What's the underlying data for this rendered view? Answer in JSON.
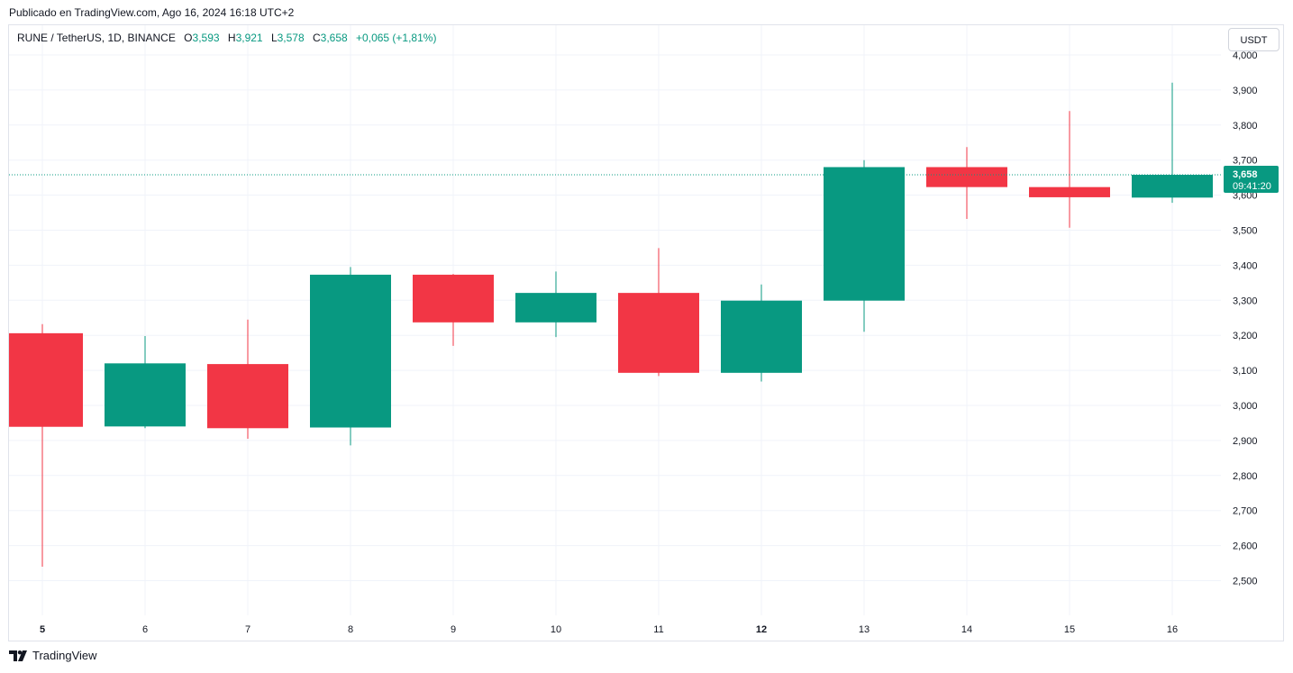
{
  "published_text": "Publicado en TradingView.com, Ago 16, 2024 16:18 UTC+2",
  "legend": {
    "symbol": "RUNE / TetherUS, 1D, BINANCE",
    "o_label": "O",
    "o_value": "3,593",
    "h_label": "H",
    "h_value": "3,921",
    "l_label": "L",
    "l_value": "3,578",
    "c_label": "C",
    "c_value": "3,658",
    "change": "+0,065 (+1,81%)"
  },
  "currency_button": "USDT",
  "price_tag": {
    "price": "3,658",
    "countdown": "09:41:20"
  },
  "brand": "TradingView",
  "colors": {
    "up": "#089981",
    "down": "#F23645",
    "grid": "#f0f3fa",
    "text": "#131722"
  },
  "chart_data": {
    "type": "candlestick",
    "x_ticks": [
      "5",
      "6",
      "7",
      "8",
      "9",
      "10",
      "11",
      "12",
      "13",
      "14",
      "15",
      "16"
    ],
    "bold_ticks": [
      "5",
      "12"
    ],
    "y_ticks": [
      "2,500",
      "2,600",
      "2,700",
      "2,800",
      "2,900",
      "3,000",
      "3,100",
      "3,200",
      "3,300",
      "3,400",
      "3,500",
      "3,600",
      "3,700",
      "3,800",
      "3,900",
      "4,000"
    ],
    "y_range": [
      2.4,
      4.02
    ],
    "last_price": 3.658,
    "candles": [
      {
        "x": "5",
        "open": 3.206,
        "high": 3.232,
        "low": 2.54,
        "close": 2.939
      },
      {
        "x": "6",
        "open": 2.94,
        "high": 3.198,
        "low": 2.935,
        "close": 3.12
      },
      {
        "x": "7",
        "open": 3.118,
        "high": 3.245,
        "low": 2.905,
        "close": 2.935
      },
      {
        "x": "8",
        "open": 2.937,
        "high": 3.395,
        "low": 2.886,
        "close": 3.373
      },
      {
        "x": "9",
        "open": 3.373,
        "high": 3.375,
        "low": 3.17,
        "close": 3.237
      },
      {
        "x": "10",
        "open": 3.237,
        "high": 3.382,
        "low": 3.195,
        "close": 3.321
      },
      {
        "x": "11",
        "open": 3.321,
        "high": 3.449,
        "low": 3.084,
        "close": 3.093
      },
      {
        "x": "12",
        "open": 3.093,
        "high": 3.345,
        "low": 3.068,
        "close": 3.299
      },
      {
        "x": "13",
        "open": 3.299,
        "high": 3.7,
        "low": 3.21,
        "close": 3.68
      },
      {
        "x": "14",
        "open": 3.68,
        "high": 3.737,
        "low": 3.532,
        "close": 3.623
      },
      {
        "x": "15",
        "open": 3.623,
        "high": 3.84,
        "low": 3.507,
        "close": 3.594
      },
      {
        "x": "16",
        "open": 3.593,
        "high": 3.921,
        "low": 3.578,
        "close": 3.658
      }
    ]
  }
}
